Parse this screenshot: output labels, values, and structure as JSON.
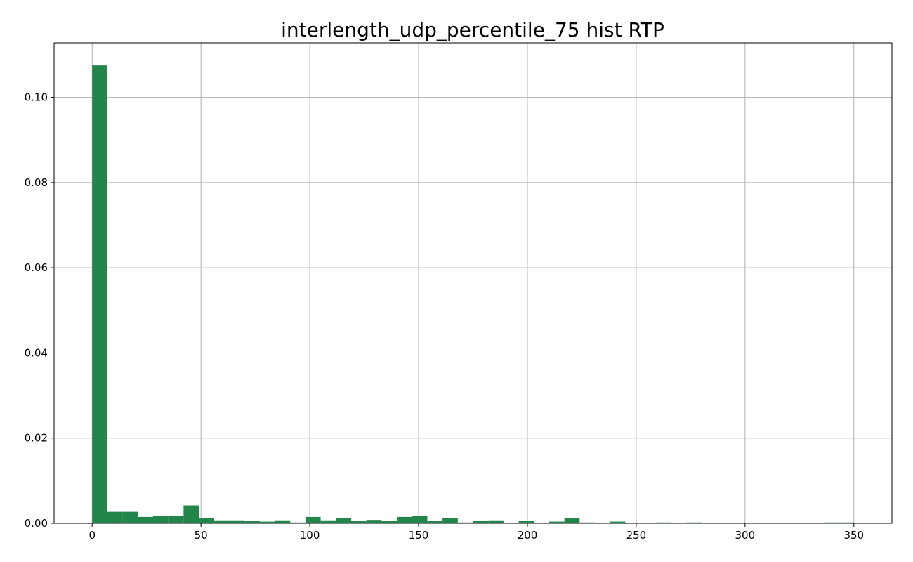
{
  "chart_data": {
    "type": "bar",
    "histogram": true,
    "title": "interlength_udp_percentile_75 hist RTP",
    "xlabel": "",
    "ylabel": "",
    "xlim": [
      -17.5,
      367.5
    ],
    "ylim": [
      0,
      0.1128
    ],
    "x_ticks": [
      0,
      50,
      100,
      150,
      200,
      250,
      300,
      350
    ],
    "y_ticks": [
      0.0,
      0.02,
      0.04,
      0.06,
      0.08,
      0.1
    ],
    "y_tick_labels": [
      "0.00",
      "0.02",
      "0.04",
      "0.06",
      "0.08",
      "0.10"
    ],
    "grid": true,
    "bar_color": "#22864a",
    "bin_width": 7,
    "bin_starts": [
      0,
      7,
      14,
      21,
      28,
      35,
      42,
      49,
      56,
      63,
      70,
      77,
      84,
      91,
      98,
      105,
      112,
      119,
      126,
      133,
      140,
      147,
      154,
      161,
      168,
      175,
      182,
      189,
      196,
      203,
      210,
      217,
      224,
      231,
      238,
      245,
      252,
      259,
      266,
      273,
      280,
      287,
      294,
      301,
      308,
      315,
      322,
      329,
      336,
      343
    ],
    "values": [
      0.1075,
      0.0027,
      0.0027,
      0.0015,
      0.0018,
      0.0018,
      0.0042,
      0.0012,
      0.0007,
      0.0007,
      0.0005,
      0.0004,
      0.0007,
      0.0002,
      0.0015,
      0.0007,
      0.0013,
      0.0005,
      0.0008,
      0.0005,
      0.0015,
      0.0018,
      0.0005,
      0.0012,
      0.0002,
      0.0005,
      0.0007,
      0.0001,
      0.0005,
      0.0001,
      0.0004,
      0.0012,
      0.0002,
      0.0001,
      0.0004,
      0.0001,
      0.0001,
      0.0002,
      0.0001,
      0.0002,
      0.0001,
      0.0001,
      0.0001,
      0.0001,
      0.0001,
      0.0001,
      0.0001,
      0.0001,
      0.0002,
      0.0002
    ]
  }
}
